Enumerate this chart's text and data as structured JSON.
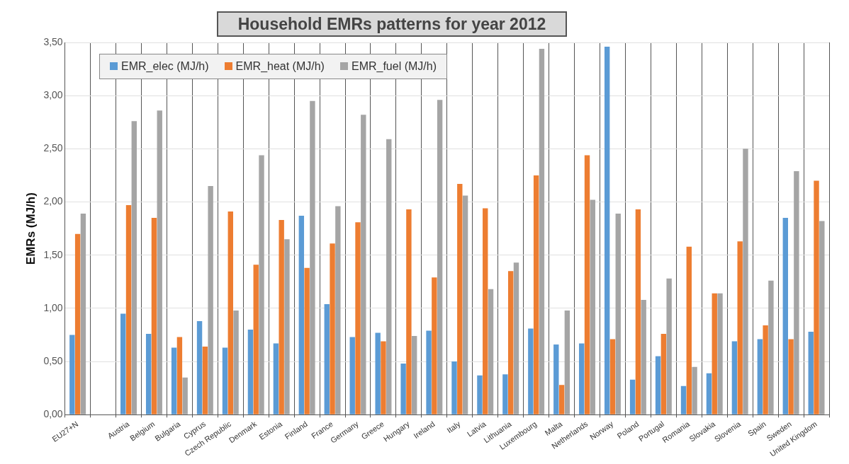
{
  "chart_data": {
    "type": "bar",
    "title": "Household EMRs patterns for year 2012",
    "ylabel": "EMRs (MJ/h)",
    "categories": [
      "EU27+N",
      null,
      "Austria",
      "Belgium",
      "Bulgaria",
      "Cyprus",
      "Czech Republic",
      "Denmark",
      "Estonia",
      "Finland",
      "France",
      "Germany",
      "Greece",
      "Hungary",
      "Ireland",
      "Italy",
      "Latvia",
      "Lithuania",
      "Luxembourg",
      "Malta",
      "Netherlands",
      "Norway",
      "Poland",
      "Portugal",
      "Romania",
      "Slovakia",
      "Slovenia",
      "Spain",
      "Sweden",
      "United Kingdom"
    ],
    "series": [
      {
        "name": "EMR_elec (MJ/h)",
        "color": "#5b9bd5",
        "values": [
          0.75,
          null,
          0.95,
          0.76,
          0.63,
          0.88,
          0.63,
          0.8,
          0.67,
          1.87,
          1.04,
          0.73,
          0.77,
          0.48,
          0.79,
          0.5,
          0.37,
          0.38,
          0.81,
          0.66,
          0.67,
          3.46,
          0.33,
          0.55,
          0.27,
          0.39,
          0.69,
          0.71,
          1.85,
          0.78
        ]
      },
      {
        "name": "EMR_heat (MJ/h)",
        "color": "#ed7d31",
        "values": [
          1.7,
          null,
          1.97,
          1.85,
          0.73,
          0.64,
          1.91,
          1.41,
          1.83,
          1.38,
          1.61,
          1.81,
          0.69,
          1.93,
          1.29,
          2.17,
          1.94,
          1.35,
          2.25,
          0.28,
          2.44,
          0.71,
          1.93,
          0.76,
          1.58,
          1.14,
          1.63,
          0.84,
          0.71,
          2.2
        ]
      },
      {
        "name": "EMR_fuel (MJ/h)",
        "color": "#a5a5a5",
        "values": [
          1.89,
          null,
          2.76,
          2.86,
          0.35,
          2.15,
          0.98,
          2.44,
          1.65,
          2.95,
          1.96,
          2.82,
          2.59,
          0.74,
          2.96,
          2.06,
          1.18,
          1.43,
          3.44,
          0.98,
          2.02,
          1.89,
          1.08,
          1.28,
          0.45,
          1.14,
          2.5,
          1.26,
          2.29,
          1.82
        ]
      }
    ],
    "ylim": [
      0,
      3.5
    ],
    "yticks": [
      {
        "value": 0,
        "label": "0,00"
      },
      {
        "value": 0.5,
        "label": "0,50"
      },
      {
        "value": 1,
        "label": "1,00"
      },
      {
        "value": 1.5,
        "label": "1,50"
      },
      {
        "value": 2,
        "label": "2,00"
      },
      {
        "value": 2.5,
        "label": "2,50"
      },
      {
        "value": 3,
        "label": "3,00"
      },
      {
        "value": 3.5,
        "label": "3,50"
      }
    ],
    "grid": true,
    "legend": "top left"
  }
}
